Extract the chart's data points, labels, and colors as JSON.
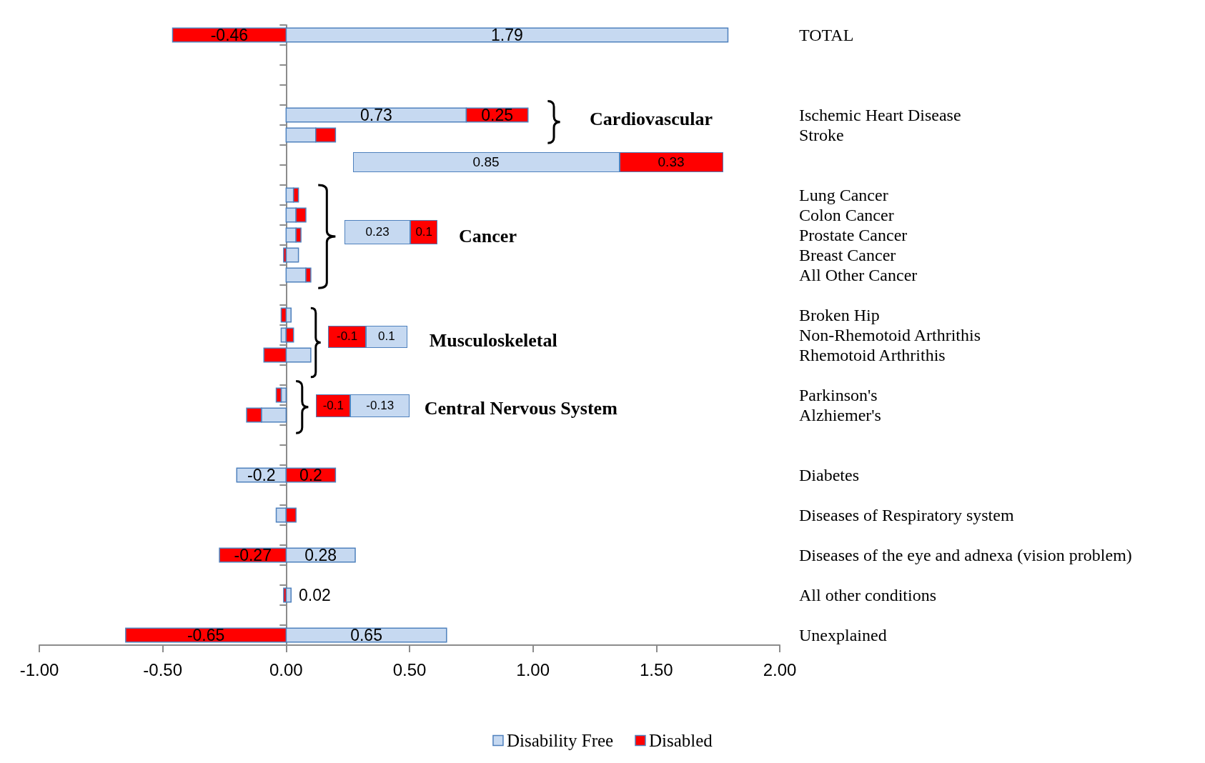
{
  "chart_data": {
    "type": "bar",
    "orientation": "horizontal",
    "stacked": true,
    "legend": "bottom",
    "categories": [
      "TOTAL",
      null,
      null,
      null,
      "Ischemic Heart Disease",
      "Stroke",
      null,
      null,
      "Lung Cancer",
      "Colon Cancer",
      "Prostate Cancer",
      "Breast Cancer",
      "All Other Cancer",
      null,
      "Broken Hip",
      "Non-Rhemotoid Arthrithis",
      "Rhemotoid Arthrithis",
      null,
      "Parkinson's",
      "Alzhiemer's",
      null,
      null,
      "Diabetes",
      null,
      "Diseases of Respiratory system",
      null,
      "Diseases of the eye and adnexa (vision problem)",
      null,
      "All other conditions",
      null,
      "Unexplained"
    ],
    "series": [
      {
        "name": "Disability Free",
        "color": "#c6d9f1",
        "values": [
          1.79,
          null,
          null,
          null,
          0.73,
          0.12,
          null,
          null,
          0.03,
          0.04,
          0.04,
          0.05,
          0.08,
          null,
          0.02,
          -0.02,
          0.1,
          null,
          -0.02,
          -0.1,
          null,
          null,
          -0.2,
          null,
          -0.04,
          null,
          0.28,
          null,
          0.02,
          null,
          0.65
        ],
        "value_labels": [
          "1.79",
          null,
          null,
          null,
          "0.73",
          null,
          null,
          null,
          null,
          null,
          null,
          null,
          null,
          null,
          null,
          null,
          null,
          null,
          null,
          null,
          null,
          null,
          "-0.2",
          null,
          null,
          null,
          "0.28",
          null,
          "0.02",
          null,
          "0.65"
        ]
      },
      {
        "name": "Disabled",
        "color": "#ff0000",
        "values": [
          -0.46,
          null,
          null,
          null,
          0.25,
          0.08,
          null,
          null,
          0.02,
          0.04,
          0.02,
          -0.01,
          0.02,
          null,
          -0.02,
          0.03,
          -0.09,
          null,
          -0.02,
          -0.06,
          null,
          null,
          0.2,
          null,
          0.04,
          null,
          -0.27,
          null,
          -0.01,
          null,
          -0.65
        ],
        "value_labels": [
          "-0.46",
          null,
          null,
          null,
          "0.25",
          null,
          null,
          null,
          null,
          null,
          null,
          null,
          null,
          null,
          null,
          null,
          null,
          null,
          null,
          null,
          null,
          null,
          "0.2",
          null,
          null,
          null,
          "-0.27",
          null,
          null,
          null,
          "-0.65"
        ]
      }
    ],
    "xlim": [
      -1,
      2
    ],
    "xticks": [
      {
        "value": -1,
        "label": "-1.00"
      },
      {
        "value": -0.5,
        "label": "-0.50"
      },
      {
        "value": 0,
        "label": "0.00"
      },
      {
        "value": 0.5,
        "label": "0.50"
      },
      {
        "value": 1,
        "label": "1.00"
      },
      {
        "value": 1.5,
        "label": "1.50"
      },
      {
        "value": 2,
        "label": "2.00"
      }
    ],
    "annotations": [
      "Cardiovascular",
      "Cancer",
      "Musculoskeletal",
      "Central Nervous System",
      "0.85",
      "0.33",
      "0.23",
      "0.1",
      "-0.1",
      "0.1",
      "-0.1",
      "-0.13"
    ]
  }
}
